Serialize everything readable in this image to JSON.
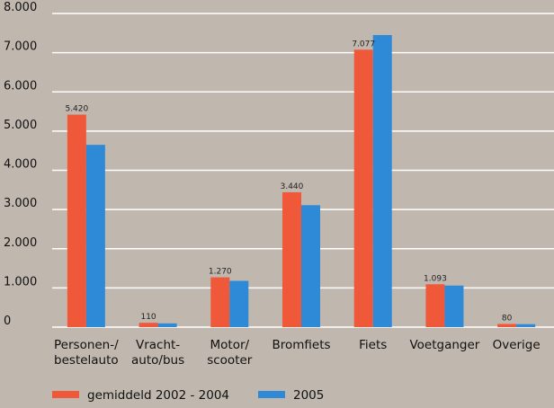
{
  "chart_data": {
    "type": "bar",
    "title": "",
    "xlabel": "",
    "ylabel": "",
    "ylim": [
      0,
      8000
    ],
    "yticks": [
      0,
      1000,
      2000,
      3000,
      4000,
      5000,
      6000,
      7000,
      8000
    ],
    "ytick_labels": [
      "0",
      "1.000",
      "2.000",
      "3.000",
      "4.000",
      "5.000",
      "6.000",
      "7.000",
      "8.000"
    ],
    "grid": true,
    "legend_position": "bottom-left",
    "categories": [
      [
        "Personen-/",
        "bestelauto"
      ],
      [
        "Vracht-",
        "auto/bus"
      ],
      [
        "Motor/",
        "scooter"
      ],
      [
        "Bromfiets"
      ],
      [
        "Fiets"
      ],
      [
        "Voetganger"
      ],
      [
        "Overige"
      ]
    ],
    "series": [
      {
        "name": "gemiddeld 2002 - 2004",
        "color": "#f0583a",
        "values": [
          5420,
          110,
          1270,
          3440,
          7077,
          1093,
          80
        ],
        "labels": [
          "5.420",
          "110",
          "1.270",
          "3.440",
          "7.077",
          "1.093",
          "80"
        ]
      },
      {
        "name": "2005",
        "color": "#2e8ad6",
        "values": [
          4650,
          95,
          1180,
          3110,
          7450,
          1060,
          75
        ]
      }
    ],
    "colors": {
      "background": "#c0b7ae",
      "gridline": "#ffffff",
      "text": "#111111"
    }
  }
}
